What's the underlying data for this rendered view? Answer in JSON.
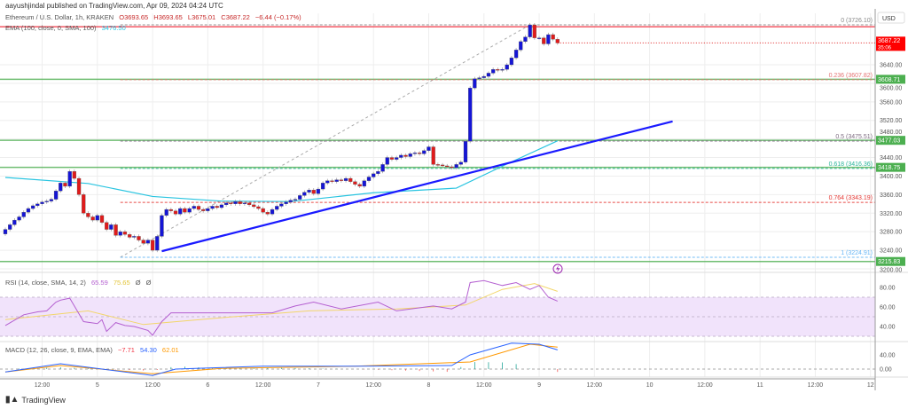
{
  "header": {
    "published": "aayushjindal published on TradingView.com, Apr 09, 2024 04:24 UTC"
  },
  "legend": {
    "symbol": "Ethereum / U.S. Dollar, 1h, KRAKEN",
    "open": "O3693.65",
    "high": "H3693.65",
    "low": "L3675.01",
    "close": "C3687.22",
    "change": "−6.44 (−0.17%)",
    "ema_label": "EMA (100, close, 0, SMA, 100)",
    "ema_value": "3476.50",
    "rsi_label": "RSI (14, close, SMA, 14, 2)",
    "rsi_value": "65.59",
    "rsi_sma_value": "75.65",
    "rsi_extra1": "Ø",
    "rsi_extra2": "Ø",
    "macd_label": "MACD (12, 26, close, 9, EMA, EMA)",
    "macd_hist": "−7.71",
    "macd_value": "54.30",
    "macd_signal": "62.01"
  },
  "price_axis": {
    "currency": "USD",
    "ticks": [
      3640,
      3600,
      3560,
      3520,
      3480,
      3440,
      3400,
      3360,
      3320,
      3280,
      3240,
      3200
    ],
    "tick_labels": [
      "3640.00",
      "3600.00",
      "3560.00",
      "3520.00",
      "3480.00",
      "3440.00",
      "3400.00",
      "3360.00",
      "3320.00",
      "3280.00",
      "3240.00",
      "3200.00"
    ],
    "current_price": "3687.22",
    "countdown": "35:06",
    "rsi_ticks": [
      "80.00",
      "60.00",
      "40.00"
    ],
    "macd_ticks": [
      "40.00",
      "0.00"
    ]
  },
  "time_axis": {
    "labels": [
      "12:00",
      "5",
      "12:00",
      "6",
      "12:00",
      "7",
      "12:00",
      "8",
      "12:00",
      "9",
      "12:00",
      "10",
      "12:00",
      "11",
      "12:00",
      "12"
    ]
  },
  "colors": {
    "up": "#1515d6",
    "down": "#e01b1b",
    "ema": "#29c4e0",
    "trendline": "#1a1aff",
    "support": "#4caf50",
    "resistance": "#f23645",
    "rsi": "#b45fd0",
    "rsi_sma": "#f2d66a",
    "macd": "#2962ff",
    "signal": "#ff9800"
  },
  "chart_data": {
    "type": "candlestick",
    "interval": "1h",
    "closes": [
      3285,
      3295,
      3305,
      3312,
      3322,
      3330,
      3336,
      3340,
      3344,
      3346,
      3350,
      3368,
      3385,
      3378,
      3410,
      3395,
      3360,
      3320,
      3312,
      3305,
      3315,
      3300,
      3285,
      3295,
      3272,
      3280,
      3274,
      3268,
      3270,
      3262,
      3255,
      3262,
      3240,
      3270,
      3315,
      3328,
      3325,
      3318,
      3330,
      3322,
      3330,
      3335,
      3328,
      3325,
      3330,
      3335,
      3332,
      3338,
      3342,
      3340,
      3345,
      3340,
      3342,
      3338,
      3334,
      3330,
      3322,
      3318,
      3328,
      3335,
      3340,
      3344,
      3348,
      3350,
      3358,
      3365,
      3370,
      3362,
      3372,
      3385,
      3390,
      3388,
      3392,
      3390,
      3395,
      3388,
      3382,
      3378,
      3390,
      3398,
      3405,
      3410,
      3425,
      3440,
      3436,
      3440,
      3445,
      3442,
      3448,
      3450,
      3448,
      3455,
      3463,
      3425,
      3424,
      3422,
      3420,
      3418,
      3425,
      3430,
      3475,
      3590,
      3610,
      3612,
      3615,
      3622,
      3630,
      3628,
      3630,
      3640,
      3655,
      3672,
      3690,
      3700,
      3726,
      3698,
      3698,
      3685,
      3705,
      3695,
      3687
    ],
    "ema100": [
      [
        0,
        3397
      ],
      [
        18,
        3384
      ],
      [
        32,
        3356
      ],
      [
        47,
        3346
      ],
      [
        62,
        3345
      ],
      [
        80,
        3364
      ],
      [
        98,
        3374
      ],
      [
        109,
        3426
      ],
      [
        120,
        3476
      ]
    ],
    "support_levels": [
      {
        "label": "3608.71",
        "value": 3608.71
      },
      {
        "label": "3477.03",
        "value": 3477.03
      },
      {
        "label": "3418.75",
        "value": 3418.75
      },
      {
        "label": "3215.83",
        "value": 3215.83
      }
    ],
    "resistance_level": 3722,
    "trendline": [
      [
        34,
        3238
      ],
      [
        145,
        3518
      ]
    ],
    "fibonacci": {
      "from": [
        25,
        3224.91
      ],
      "to": [
        114,
        3726.1
      ],
      "levels": [
        {
          "ratio": "0",
          "value": 3726.1,
          "label": "0 (3726.10)",
          "color": "#8a8a8a"
        },
        {
          "ratio": "0.236",
          "value": 3607.82,
          "label": "0.236 (3607.82)",
          "color": "#e57373"
        },
        {
          "ratio": "0.5",
          "value": 3475.51,
          "label": "0.5 (3475.51)",
          "color": "#7d6b80"
        },
        {
          "ratio": "0.618",
          "value": 3416.36,
          "label": "0.618 (3416.36)",
          "color": "#2bb59a"
        },
        {
          "ratio": "0.764",
          "value": 3343.19,
          "label": "0.764 (3343.19)",
          "color": "#e53935"
        },
        {
          "ratio": "1",
          "value": 3224.91,
          "label": "1 (3224.91)",
          "color": "#64b5f6"
        }
      ]
    },
    "rsi": [
      [
        0,
        41
      ],
      [
        4,
        52
      ],
      [
        7,
        55
      ],
      [
        9,
        56
      ],
      [
        11,
        65
      ],
      [
        12,
        67
      ],
      [
        14,
        69
      ],
      [
        15,
        61
      ],
      [
        17,
        45
      ],
      [
        20,
        43
      ],
      [
        21,
        47
      ],
      [
        22,
        35
      ],
      [
        24,
        44
      ],
      [
        26,
        41
      ],
      [
        28,
        40
      ],
      [
        31,
        36
      ],
      [
        32,
        31
      ],
      [
        34,
        45
      ],
      [
        36,
        54
      ],
      [
        42,
        54
      ],
      [
        58,
        54
      ],
      [
        63,
        61
      ],
      [
        67,
        65
      ],
      [
        73,
        58
      ],
      [
        81,
        65
      ],
      [
        85,
        56
      ],
      [
        93,
        61
      ],
      [
        97,
        58
      ],
      [
        100,
        65
      ],
      [
        101,
        85
      ],
      [
        104,
        87
      ],
      [
        108,
        82
      ],
      [
        111,
        85
      ],
      [
        114,
        78
      ],
      [
        116,
        82
      ],
      [
        118,
        70
      ],
      [
        120,
        66
      ]
    ],
    "rsi_sma": [
      [
        0,
        47
      ],
      [
        18,
        56
      ],
      [
        30,
        42
      ],
      [
        47,
        49
      ],
      [
        66,
        56
      ],
      [
        85,
        58
      ],
      [
        100,
        62
      ],
      [
        108,
        78
      ],
      [
        115,
        84
      ],
      [
        120,
        76
      ]
    ],
    "rsi_bands": {
      "upper": 70,
      "middle": 50,
      "lower": 30
    },
    "macd": [
      [
        0,
        -8
      ],
      [
        12,
        15
      ],
      [
        18,
        5
      ],
      [
        32,
        -18
      ],
      [
        37,
        0
      ],
      [
        56,
        8
      ],
      [
        76,
        8
      ],
      [
        97,
        10
      ],
      [
        101,
        40
      ],
      [
        110,
        73
      ],
      [
        116,
        70
      ],
      [
        120,
        54
      ]
    ],
    "signal": [
      [
        0,
        -8
      ],
      [
        12,
        10
      ],
      [
        32,
        -13
      ],
      [
        47,
        2
      ],
      [
        76,
        8
      ],
      [
        101,
        20
      ],
      [
        114,
        70
      ],
      [
        120,
        62
      ]
    ]
  }
}
